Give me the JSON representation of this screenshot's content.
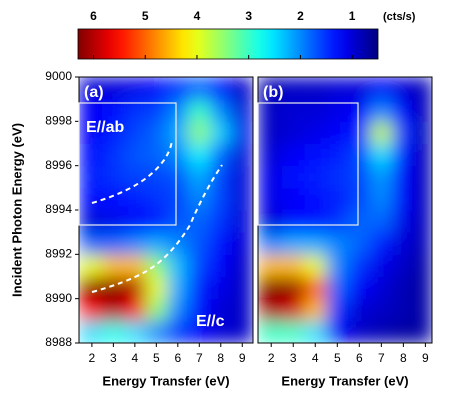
{
  "colorbar": {
    "label": "(cts/s)",
    "colormap": "jet",
    "zlim": [
      6.3,
      0.5
    ],
    "ticks": [
      6,
      5,
      4,
      3,
      2,
      1
    ]
  },
  "chart_data": [
    {
      "type": "heatmap",
      "panel_label": "(a)",
      "annotations": [
        "E//ab",
        "E//c"
      ],
      "xlabel": "Energy Transfer (eV)",
      "ylabel": "Incident Photon Energy (eV)",
      "xlim": [
        1.4,
        9.5
      ],
      "ylim": [
        8988,
        9000
      ],
      "xticks": [
        2,
        3,
        4,
        5,
        6,
        7,
        8,
        9
      ],
      "yticks": [
        8988,
        8990,
        8992,
        8994,
        8996,
        8998,
        9000
      ],
      "x": [
        2,
        3,
        4,
        5,
        6,
        7,
        8,
        9
      ],
      "y": [
        8988.5,
        8989.5,
        8990.5,
        8991.5,
        8992.5,
        8993.5,
        8994.5,
        8995.5,
        8996.5,
        8997.5,
        8998.5,
        8999.5
      ],
      "z": [
        [
          2.5,
          2.8,
          2.5,
          2,
          1.5,
          1.2,
          1,
          0.9
        ],
        [
          5.5,
          6,
          5.5,
          3.5,
          2,
          1.3,
          1,
          0.9
        ],
        [
          6.2,
          6.3,
          6,
          4,
          2.2,
          1.4,
          1.1,
          0.9
        ],
        [
          4,
          4.5,
          4.5,
          3.5,
          2.3,
          1.6,
          1.2,
          0.9
        ],
        [
          1.8,
          1.8,
          2,
          2.2,
          2,
          1.7,
          1.3,
          1
        ],
        [
          1,
          1.1,
          1.2,
          1.3,
          1.7,
          1.8,
          1.5,
          1
        ],
        [
          1.3,
          1.3,
          1.4,
          1.5,
          1.6,
          2,
          1.6,
          1
        ],
        [
          1.4,
          1.5,
          1.6,
          1.6,
          1.7,
          2.2,
          1.6,
          1
        ],
        [
          1.3,
          1.5,
          1.7,
          1.8,
          2,
          2.6,
          1.8,
          1
        ],
        [
          1.2,
          1.4,
          1.6,
          1.8,
          2.2,
          3.5,
          2.4,
          1.1
        ],
        [
          1.2,
          1.3,
          1.5,
          1.6,
          2,
          3,
          2,
          1
        ],
        [
          1,
          1,
          1.1,
          1.2,
          1.5,
          1.8,
          1.3,
          0.9
        ]
      ]
    },
    {
      "type": "heatmap",
      "panel_label": "(b)",
      "xlabel": "Energy Transfer (eV)",
      "xlim": [
        1.4,
        9.3
      ],
      "ylim": [
        8988,
        9000
      ],
      "xticks": [
        2,
        3,
        4,
        5,
        6,
        7,
        8,
        9
      ],
      "x": [
        2,
        3,
        4,
        5,
        6,
        7,
        8,
        9
      ],
      "y": [
        8988.5,
        8989.5,
        8990.5,
        8991.5,
        8992.5,
        8993.5,
        8994.5,
        8995.5,
        8996.5,
        8997.5,
        8998.5,
        8999.5
      ],
      "z": [
        [
          3,
          3,
          2.5,
          1.2,
          0.9,
          0.8,
          0.7,
          0.7
        ],
        [
          6,
          5.8,
          4.5,
          1.5,
          1,
          0.9,
          0.8,
          0.7
        ],
        [
          6.3,
          6.2,
          5,
          1.8,
          1.2,
          1,
          0.8,
          0.7
        ],
        [
          4.5,
          4.5,
          4,
          2,
          1.5,
          1.1,
          0.9,
          0.7
        ],
        [
          2,
          2.2,
          2.2,
          2,
          1.8,
          1.4,
          1,
          0.8
        ],
        [
          1,
          1.3,
          1.3,
          1.5,
          1.8,
          1.8,
          1.1,
          0.8
        ],
        [
          1.1,
          1.2,
          1.3,
          1.4,
          1.6,
          2,
          1.2,
          0.8
        ],
        [
          1.1,
          1.3,
          1.4,
          1.5,
          1.6,
          2.1,
          1.2,
          0.8
        ],
        [
          1,
          1.2,
          1.3,
          1.4,
          1.6,
          2.5,
          1.3,
          0.8
        ],
        [
          0.9,
          1,
          1.1,
          1.2,
          1.4,
          3.8,
          1.5,
          0.8
        ],
        [
          0.9,
          1,
          1,
          1.1,
          1.2,
          2,
          1.2,
          0.8
        ],
        [
          0.8,
          0.9,
          0.9,
          1,
          1,
          1.2,
          1,
          0.8
        ]
      ]
    }
  ]
}
